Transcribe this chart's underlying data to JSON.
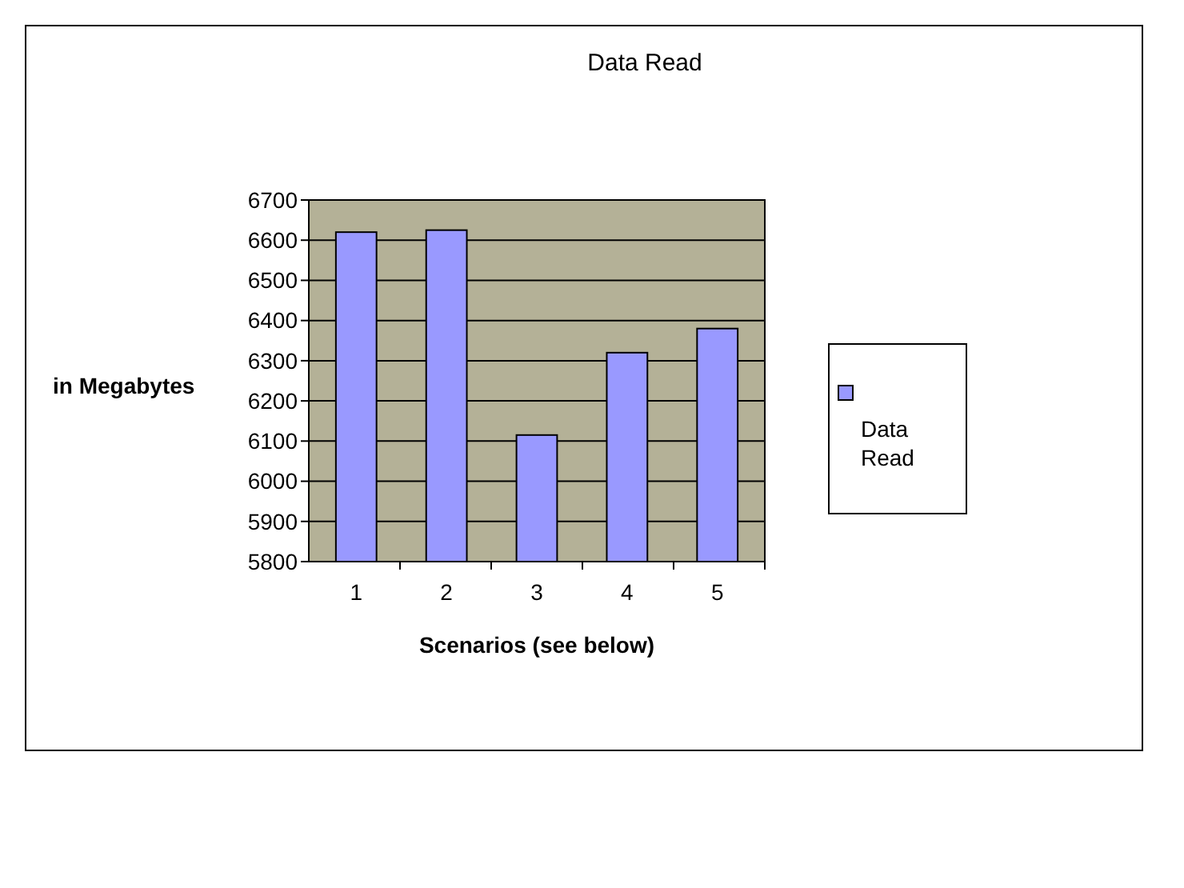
{
  "chart_data": {
    "type": "bar",
    "title": "Data Read",
    "xlabel": "Scenarios (see below)",
    "ylabel": "in Megabytes",
    "categories": [
      "1",
      "2",
      "3",
      "4",
      "5"
    ],
    "series": [
      {
        "name": "Data Read",
        "color": "#9999ff",
        "values": [
          6620,
          6625,
          6115,
          6320,
          6380
        ]
      }
    ],
    "ylim": [
      5800,
      6700
    ],
    "yticks": [
      5800,
      5900,
      6000,
      6100,
      6200,
      6300,
      6400,
      6500,
      6600,
      6700
    ],
    "grid": "y",
    "legend": "right"
  }
}
